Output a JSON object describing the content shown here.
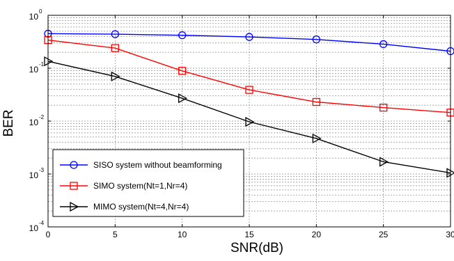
{
  "chart_data": {
    "type": "line",
    "xlabel": "SNR(dB)",
    "ylabel": "BER",
    "x": [
      0,
      5,
      10,
      15,
      20,
      25,
      30
    ],
    "xlim": [
      0,
      30
    ],
    "ylim": [
      0.0001,
      1
    ],
    "yscale": "log",
    "xticks": [
      "0",
      "5",
      "10",
      "15",
      "20",
      "25",
      "30"
    ],
    "yticks": [
      {
        "base": "10",
        "exp": "0"
      },
      {
        "base": "10",
        "exp": "-1"
      },
      {
        "base": "10",
        "exp": "-2"
      },
      {
        "base": "10",
        "exp": "-3"
      },
      {
        "base": "10",
        "exp": "-4"
      }
    ],
    "grid": true,
    "legend_position": "bottom-left",
    "series": [
      {
        "name": "SISO system without beamforming",
        "color": "#0000ff",
        "marker": "circle",
        "values": [
          0.45,
          0.44,
          0.42,
          0.39,
          0.35,
          0.285,
          0.21
        ]
      },
      {
        "name": "SIMO system(Nt=1,Nr=4)",
        "color": "#ff0000",
        "marker": "square",
        "values": [
          0.34,
          0.24,
          0.089,
          0.039,
          0.023,
          0.018,
          0.0145
        ]
      },
      {
        "name": "MIMO system(Nt=4,Nr=4)",
        "color": "#000000",
        "marker": "triangle-right",
        "values": [
          0.135,
          0.07,
          0.027,
          0.0097,
          0.0047,
          0.0017,
          0.00105
        ]
      }
    ]
  }
}
